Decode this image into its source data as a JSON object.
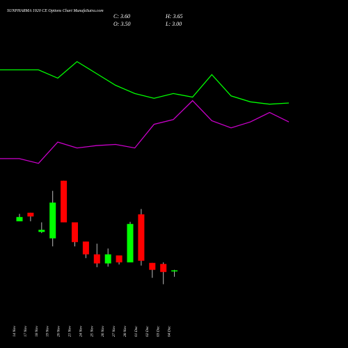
{
  "chart_data": [
    {
      "type": "candlestick",
      "title": "SUNPHARMA 1920 CE Options Chart MunafaSutra.com",
      "legend": {
        "close": "C: 3.60",
        "high": "H: 3.65",
        "open": "O: 3.50",
        "low": "L: 3.00"
      },
      "categories": [
        "14 Nov",
        "17 Nov",
        "18 Nov",
        "19 Nov",
        "20 Nov",
        "21 Nov",
        "24 Nov",
        "25 Nov",
        "26 Nov",
        "27 Nov",
        "28 Nov",
        "01 Dec",
        "02 Dec",
        "03 Dec",
        "04 Dec"
      ],
      "open": [
        8.2,
        9.0,
        7.2,
        6.6,
        12.0,
        8.1,
        6.3,
        5.1,
        4.25,
        5.0,
        4.35,
        8.85,
        4.3,
        4.2,
        3.5
      ],
      "high": [
        8.9,
        9.0,
        8.1,
        11.05,
        12.0,
        8.1,
        6.3,
        6.1,
        5.65,
        5.0,
        8.15,
        9.35,
        4.3,
        4.35,
        3.65
      ],
      "low": [
        8.2,
        8.2,
        7.1,
        5.85,
        8.1,
        5.85,
        4.75,
        3.9,
        3.95,
        4.15,
        4.35,
        4.05,
        2.9,
        2.3,
        3.0
      ],
      "close": [
        8.6,
        8.65,
        7.4,
        9.95,
        8.1,
        6.25,
        5.1,
        4.25,
        5.1,
        4.35,
        7.95,
        4.5,
        3.65,
        3.45,
        3.6
      ],
      "up_color": "#00ff00",
      "down_color": "#ff0000",
      "wick_color": "#bbbbbb",
      "ylim": [
        2,
        14
      ]
    },
    {
      "type": "line",
      "categories": [
        null,
        null,
        null,
        null,
        null,
        null,
        null,
        null,
        null,
        null,
        null,
        null,
        null,
        null,
        null,
        null
      ],
      "series": [
        {
          "color": "#00ff00",
          "values": [
            88,
            88,
            88,
            81,
            95,
            85,
            75,
            68,
            64,
            68,
            65,
            84,
            66,
            61,
            59,
            60
          ]
        },
        {
          "color": "#cc00cc",
          "values": [
            13,
            13,
            9,
            27,
            22,
            24,
            25,
            22,
            42,
            46,
            62,
            45,
            39,
            44,
            52,
            44
          ]
        }
      ],
      "ylim": [
        0,
        100
      ]
    }
  ]
}
